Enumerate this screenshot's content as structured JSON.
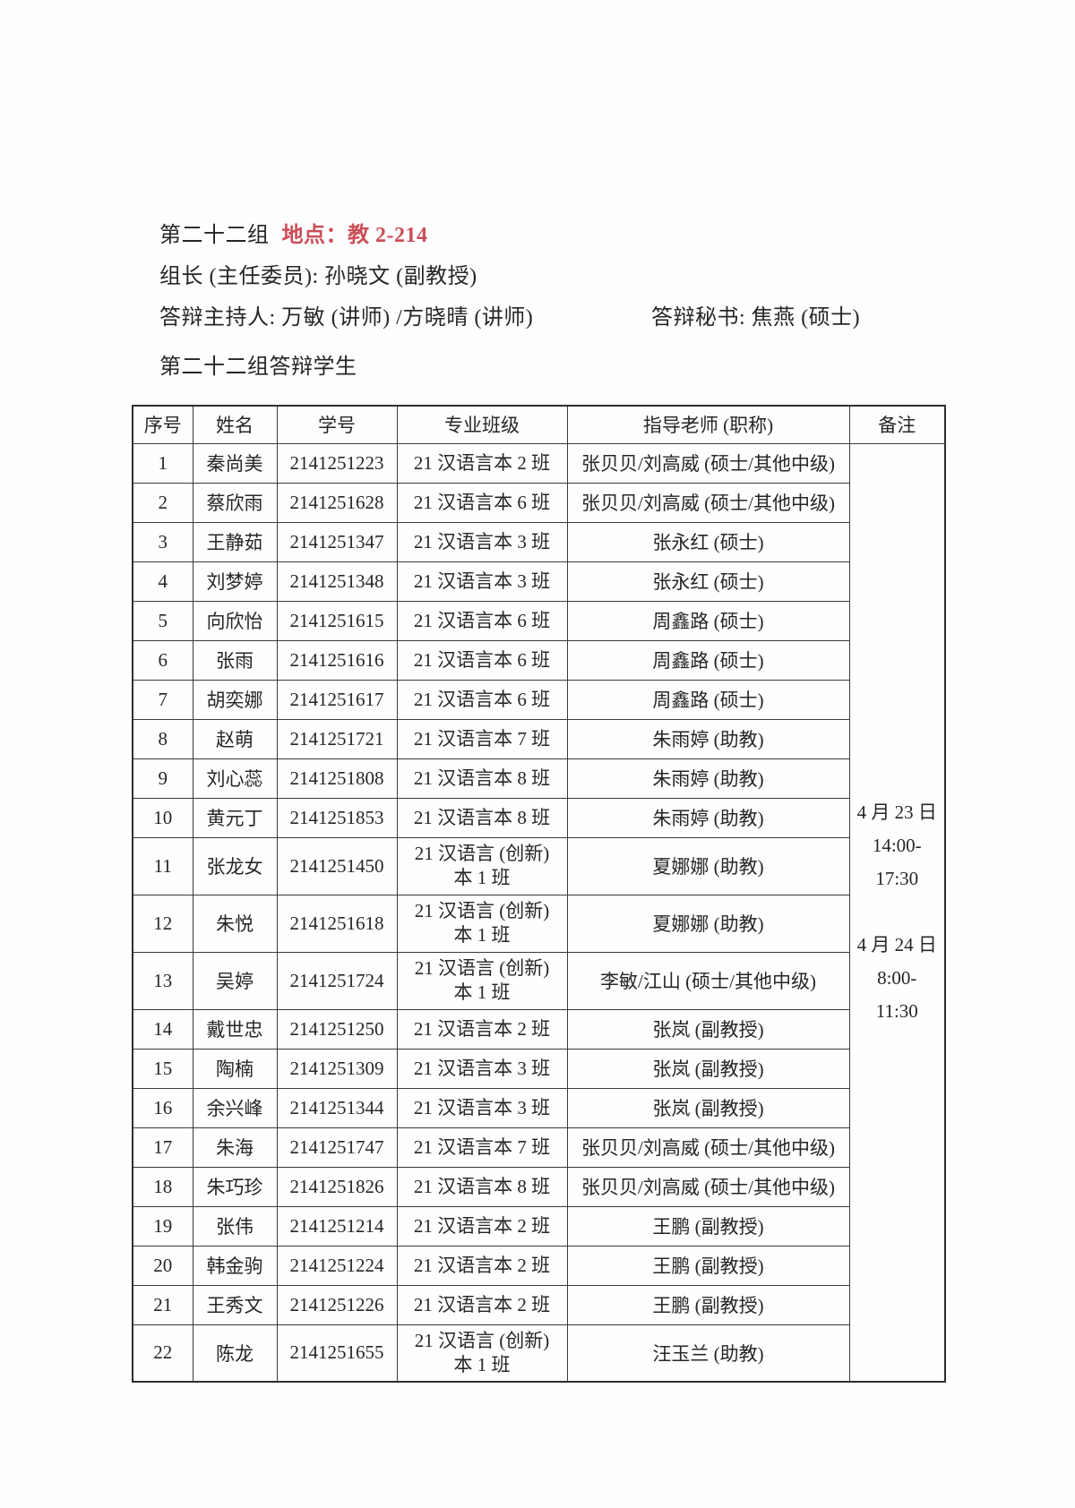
{
  "header": {
    "group_title": "第二十二组",
    "location": "地点：教 2-214",
    "leader": "组长 (主任委员): 孙晓文 (副教授)",
    "host": "答辩主持人: 万敏 (讲师) /方晓晴 (讲师)",
    "secretary": "答辩秘书: 焦燕 (硕士)",
    "table_caption": "第二十二组答辩学生"
  },
  "colors": {
    "accent_red": "#cb4e58",
    "border": "#3a3a3a",
    "text": "#262626",
    "page_bg": "#fdfdfc"
  },
  "table": {
    "columns": [
      "序号",
      "姓名",
      "学号",
      "专业班级",
      "指导老师 (职称)",
      "备注"
    ],
    "students": [
      {
        "no": "1",
        "name": "秦尚美",
        "student_id": "2141251223",
        "class": "21 汉语言本 2 班",
        "advisor": "张贝贝/刘高威 (硕士/其他中级)",
        "tall": false
      },
      {
        "no": "2",
        "name": "蔡欣雨",
        "student_id": "2141251628",
        "class": "21 汉语言本 6 班",
        "advisor": "张贝贝/刘高威 (硕士/其他中级)",
        "tall": false
      },
      {
        "no": "3",
        "name": "王静茹",
        "student_id": "2141251347",
        "class": "21 汉语言本 3 班",
        "advisor": "张永红 (硕士)",
        "tall": false
      },
      {
        "no": "4",
        "name": "刘梦婷",
        "student_id": "2141251348",
        "class": "21 汉语言本 3 班",
        "advisor": "张永红 (硕士)",
        "tall": false
      },
      {
        "no": "5",
        "name": "向欣怡",
        "student_id": "2141251615",
        "class": "21 汉语言本 6 班",
        "advisor": "周鑫路 (硕士)",
        "tall": false
      },
      {
        "no": "6",
        "name": "张雨",
        "student_id": "2141251616",
        "class": "21 汉语言本 6 班",
        "advisor": "周鑫路 (硕士)",
        "tall": false
      },
      {
        "no": "7",
        "name": "胡奕娜",
        "student_id": "2141251617",
        "class": "21 汉语言本 6 班",
        "advisor": "周鑫路 (硕士)",
        "tall": false
      },
      {
        "no": "8",
        "name": "赵萌",
        "student_id": "2141251721",
        "class": "21 汉语言本 7 班",
        "advisor": "朱雨婷 (助教)",
        "tall": false
      },
      {
        "no": "9",
        "name": "刘心蕊",
        "student_id": "2141251808",
        "class": "21 汉语言本 8 班",
        "advisor": "朱雨婷 (助教)",
        "tall": false
      },
      {
        "no": "10",
        "name": "黄元丁",
        "student_id": "2141251853",
        "class": "21 汉语言本 8 班",
        "advisor": "朱雨婷 (助教)",
        "tall": false
      },
      {
        "no": "11",
        "name": "张龙女",
        "student_id": "2141251450",
        "class": "21 汉语言 (创新)\n本 1 班",
        "advisor": "夏娜娜 (助教)",
        "tall": true
      },
      {
        "no": "12",
        "name": "朱悦",
        "student_id": "2141251618",
        "class": "21 汉语言 (创新)\n本 1 班",
        "advisor": "夏娜娜 (助教)",
        "tall": true
      },
      {
        "no": "13",
        "name": "吴婷",
        "student_id": "2141251724",
        "class": "21 汉语言 (创新)\n本 1 班",
        "advisor": "李敏/江山 (硕士/其他中级)",
        "tall": true
      },
      {
        "no": "14",
        "name": "戴世忠",
        "student_id": "2141251250",
        "class": "21 汉语言本 2 班",
        "advisor": "张岚 (副教授)",
        "tall": false
      },
      {
        "no": "15",
        "name": "陶楠",
        "student_id": "2141251309",
        "class": "21 汉语言本 3 班",
        "advisor": "张岚 (副教授)",
        "tall": false
      },
      {
        "no": "16",
        "name": "余兴峰",
        "student_id": "2141251344",
        "class": "21 汉语言本 3 班",
        "advisor": "张岚 (副教授)",
        "tall": false
      },
      {
        "no": "17",
        "name": "朱海",
        "student_id": "2141251747",
        "class": "21 汉语言本 7 班",
        "advisor": "张贝贝/刘高威 (硕士/其他中级)",
        "tall": false
      },
      {
        "no": "18",
        "name": "朱巧珍",
        "student_id": "2141251826",
        "class": "21 汉语言本 8 班",
        "advisor": "张贝贝/刘高威 (硕士/其他中级)",
        "tall": false
      },
      {
        "no": "19",
        "name": "张伟",
        "student_id": "2141251214",
        "class": "21 汉语言本 2 班",
        "advisor": "王鹏 (副教授)",
        "tall": false
      },
      {
        "no": "20",
        "name": "韩金驹",
        "student_id": "2141251224",
        "class": "21 汉语言本 2 班",
        "advisor": "王鹏 (副教授)",
        "tall": false
      },
      {
        "no": "21",
        "name": "王秀文",
        "student_id": "2141251226",
        "class": "21 汉语言本 2 班",
        "advisor": "王鹏 (副教授)",
        "tall": false
      },
      {
        "no": "22",
        "name": "陈龙",
        "student_id": "2141251655",
        "class": "21 汉语言 (创新)\n本 1 班",
        "advisor": "汪玉兰 (助教)",
        "tall": true
      }
    ],
    "remark": "4 月 23 日\n14:00-\n17:30\n\n4 月 24 日\n8:00-\n11:30"
  }
}
